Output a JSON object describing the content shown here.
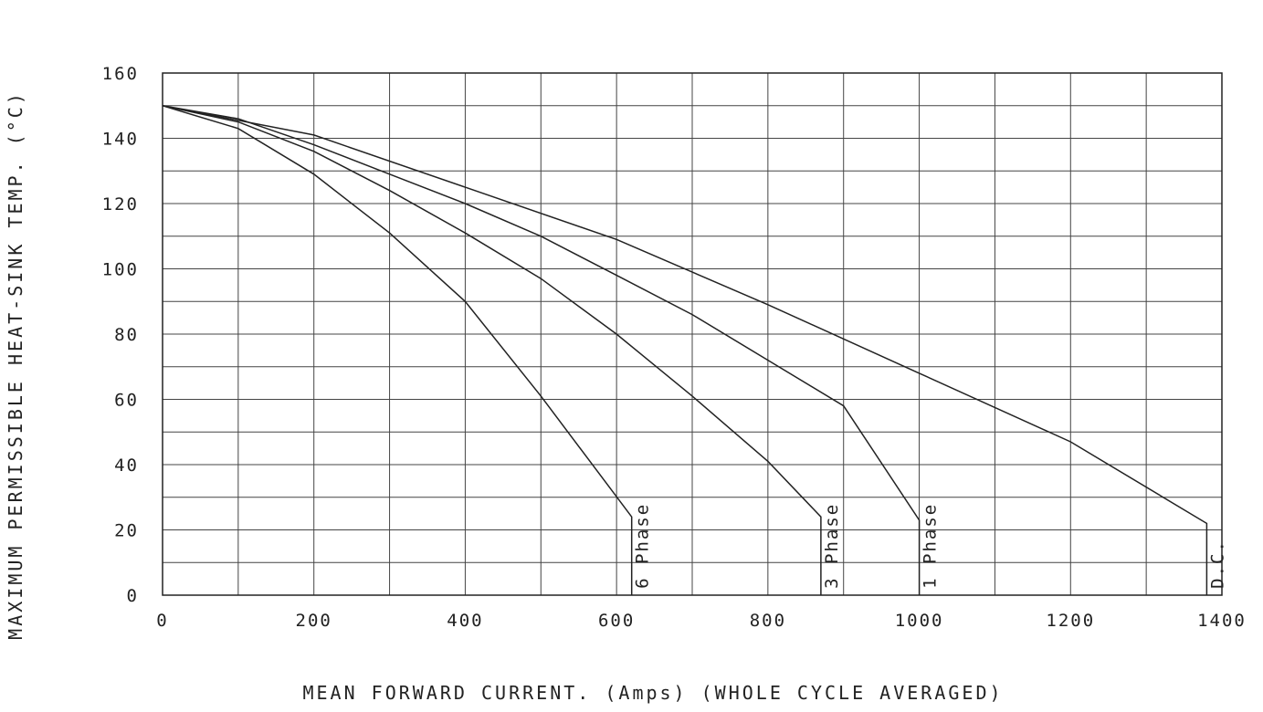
{
  "chart_data": {
    "type": "line",
    "title": "",
    "xlabel": "MEAN FORWARD CURRENT.  (Amps)  (WHOLE CYCLE AVERAGED)",
    "ylabel": "MAXIMUM PERMISSIBLE HEAT-SINK TEMP. (°C)",
    "xlim": [
      0,
      1400
    ],
    "ylim": [
      0,
      160
    ],
    "x_ticks": [
      "0",
      "200",
      "400",
      "600",
      "800",
      "1000",
      "1200",
      "1400"
    ],
    "y_ticks": [
      "0",
      "20",
      "40",
      "60",
      "80",
      "100",
      "120",
      "140",
      "160"
    ],
    "grid": true,
    "series": [
      {
        "name": "6 Phase",
        "x": [
          0,
          100,
          200,
          300,
          400,
          500,
          620,
          620
        ],
        "y": [
          150,
          143,
          129,
          111,
          90,
          61,
          24,
          0
        ]
      },
      {
        "name": "3 Phase",
        "x": [
          0,
          100,
          200,
          300,
          400,
          500,
          600,
          700,
          800,
          870,
          870
        ],
        "y": [
          150,
          145,
          136,
          124,
          111,
          97,
          80,
          61,
          41,
          24,
          0
        ]
      },
      {
        "name": "1 Phase",
        "x": [
          0,
          100,
          200,
          300,
          400,
          500,
          600,
          700,
          800,
          900,
          1000,
          1000
        ],
        "y": [
          150,
          146,
          138,
          129,
          120,
          110,
          98,
          86,
          72,
          58,
          23,
          0
        ]
      },
      {
        "name": "D.C.",
        "x": [
          0,
          200,
          400,
          600,
          800,
          1000,
          1200,
          1380,
          1380
        ],
        "y": [
          150,
          141,
          125,
          109,
          89,
          68,
          47,
          22,
          0
        ]
      }
    ]
  }
}
